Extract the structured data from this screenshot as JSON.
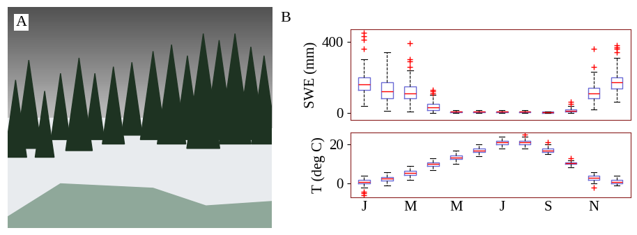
{
  "panels": {
    "photo": {
      "label": "A"
    },
    "charts": {
      "label": "B"
    }
  },
  "chart_data": [
    {
      "type": "box",
      "ylabel": "SWE (mm)",
      "color": "#6b6bd6",
      "ylim": [
        -40,
        470
      ],
      "yticks": [
        0,
        400
      ],
      "tick_labels": "y",
      "grid": false,
      "boxes": [
        {
          "med": 160,
          "q1": 130,
          "q3": 200,
          "whislo": 40,
          "whishi": 300,
          "fliers": [
            360,
            410,
            430,
            450
          ]
        },
        {
          "med": 120,
          "q1": 80,
          "q3": 170,
          "whislo": 10,
          "whishi": 340,
          "fliers": []
        },
        {
          "med": 110,
          "q1": 80,
          "q3": 150,
          "whislo": 5,
          "whishi": 240,
          "fliers": [
            260,
            290,
            300,
            390
          ]
        },
        {
          "med": 30,
          "q1": 15,
          "q3": 50,
          "whislo": 0,
          "whishi": 100,
          "fliers": [
            110,
            120,
            130
          ]
        },
        {
          "med": 5,
          "q1": 2,
          "q3": 8,
          "whislo": 0,
          "whishi": 15,
          "fliers": []
        },
        {
          "med": 5,
          "q1": 2,
          "q3": 8,
          "whislo": 0,
          "whishi": 15,
          "fliers": []
        },
        {
          "med": 5,
          "q1": 2,
          "q3": 8,
          "whislo": 0,
          "whishi": 15,
          "fliers": []
        },
        {
          "med": 5,
          "q1": 2,
          "q3": 8,
          "whislo": 0,
          "whishi": 15,
          "fliers": []
        },
        {
          "med": 2,
          "q1": 0,
          "q3": 5,
          "whislo": 0,
          "whishi": 8,
          "fliers": []
        },
        {
          "med": 10,
          "q1": 5,
          "q3": 20,
          "whislo": 0,
          "whishi": 40,
          "fliers": [
            50,
            60
          ]
        },
        {
          "med": 110,
          "q1": 80,
          "q3": 140,
          "whislo": 20,
          "whishi": 230,
          "fliers": [
            260,
            360
          ]
        },
        {
          "med": 170,
          "q1": 135,
          "q3": 200,
          "whislo": 60,
          "whishi": 310,
          "fliers": [
            340,
            360,
            370,
            380
          ]
        }
      ]
    },
    {
      "type": "box",
      "ylabel": "T (deg C)",
      "color": "#6b6bd6",
      "categories": [
        "J",
        null,
        "M",
        null,
        "M",
        null,
        "J",
        null,
        "S",
        null,
        "N",
        null
      ],
      "ylim": [
        -7,
        26
      ],
      "yticks": [
        0,
        20
      ],
      "grid": false,
      "boxes": [
        {
          "med": 1,
          "q1": 0,
          "q3": 2,
          "whislo": -2,
          "whishi": 4,
          "fliers": [
            -4,
            -5,
            -6
          ]
        },
        {
          "med": 2.5,
          "q1": 1.5,
          "q3": 3.5,
          "whislo": -1,
          "whishi": 6,
          "fliers": []
        },
        {
          "med": 5.5,
          "q1": 4.5,
          "q3": 6.5,
          "whislo": 2,
          "whishi": 9,
          "fliers": []
        },
        {
          "med": 10,
          "q1": 9,
          "q3": 11,
          "whislo": 7,
          "whishi": 13,
          "fliers": []
        },
        {
          "med": 13.5,
          "q1": 12.5,
          "q3": 14.5,
          "whislo": 10,
          "whishi": 17,
          "fliers": []
        },
        {
          "med": 17,
          "q1": 16,
          "q3": 18,
          "whislo": 14,
          "whishi": 20,
          "fliers": []
        },
        {
          "med": 21,
          "q1": 20,
          "q3": 22,
          "whislo": 18,
          "whishi": 24,
          "fliers": []
        },
        {
          "med": 21,
          "q1": 20,
          "q3": 22,
          "whislo": 18,
          "whishi": 24,
          "fliers": [
            25
          ]
        },
        {
          "med": 17,
          "q1": 16,
          "q3": 18,
          "whislo": 15,
          "whishi": 20,
          "fliers": [
            21
          ]
        },
        {
          "med": 10.5,
          "q1": 10,
          "q3": 11,
          "whislo": 8.5,
          "whishi": 12,
          "fliers": [
            13
          ]
        },
        {
          "med": 3,
          "q1": 2,
          "q3": 4,
          "whislo": 0,
          "whishi": 6,
          "fliers": [
            -2
          ]
        },
        {
          "med": 1,
          "q1": 0,
          "q3": 2,
          "whislo": -1,
          "whishi": 4,
          "fliers": []
        }
      ]
    }
  ]
}
